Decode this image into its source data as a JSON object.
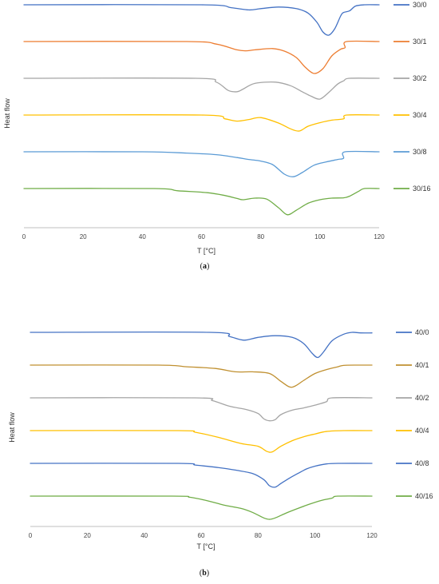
{
  "chart_data": [
    {
      "type": "line",
      "panel_label": "a",
      "xlabel": "T [°C]",
      "ylabel": "Heat flow",
      "xlim": [
        0,
        120
      ],
      "xticks": [
        0,
        20,
        40,
        60,
        80,
        100,
        120
      ],
      "grid": false,
      "legend_position": "right",
      "series": [
        {
          "name": "30/0",
          "color": "#4472C4",
          "baseline_level": 5,
          "x": [
            0,
            60,
            70,
            76,
            80,
            86,
            92,
            96,
            99,
            101,
            103,
            105,
            107,
            108,
            110,
            112,
            115,
            120
          ],
          "y": [
            0,
            0,
            0.9,
            1.6,
            1.2,
            0.7,
            1.2,
            2.6,
            5.5,
            8.5,
            9.5,
            7.5,
            3.5,
            2.4,
            1.9,
            0.4,
            0,
            0
          ]
        },
        {
          "name": "30/1",
          "color": "#ED7D31",
          "baseline_level": 4,
          "x": [
            0,
            55,
            65,
            72,
            75,
            78,
            84,
            88,
            92,
            95,
            98,
            101,
            104,
            107,
            108.5,
            109,
            120
          ],
          "y": [
            0,
            0,
            0.8,
            2.6,
            2.9,
            2.6,
            2.2,
            3.0,
            5.0,
            8.0,
            10.0,
            8.5,
            4.5,
            2.4,
            1.9,
            0,
            0
          ]
        },
        {
          "name": "30/2",
          "color": "#A5A5A5",
          "baseline_level": 3,
          "x": [
            0,
            58,
            65,
            69,
            72,
            74,
            78,
            85,
            90,
            94,
            97,
            100,
            103,
            106,
            108,
            110,
            120
          ],
          "y": [
            0,
            0,
            1.2,
            3.8,
            4.2,
            3.4,
            1.6,
            1.2,
            2.3,
            4.2,
            5.6,
            6.5,
            4.4,
            1.8,
            0.8,
            0,
            0
          ]
        },
        {
          "name": "30/4",
          "color": "#FFC000",
          "baseline_level": 2,
          "x": [
            0,
            60,
            68,
            72,
            76,
            80,
            86,
            90,
            93,
            96,
            100,
            104,
            108,
            109,
            120
          ],
          "y": [
            0,
            0,
            1.2,
            1.9,
            1.4,
            0.8,
            2.5,
            4.3,
            5.0,
            3.5,
            2.4,
            1.6,
            1.2,
            0,
            0
          ]
        },
        {
          "name": "30/8",
          "color": "#5B9BD5",
          "baseline_level": 1,
          "x": [
            0,
            40,
            55,
            65,
            72,
            76,
            80,
            84,
            88,
            91,
            94,
            98,
            102,
            106,
            108,
            108.5,
            120
          ],
          "y": [
            0,
            0,
            0.4,
            0.9,
            1.8,
            2.4,
            2.9,
            4.0,
            7.0,
            7.8,
            6.5,
            4.2,
            3.2,
            2.4,
            2.0,
            0,
            0
          ]
        },
        {
          "name": "30/16",
          "color": "#70AD47",
          "baseline_level": 0,
          "x": [
            0,
            44,
            52,
            62,
            68,
            72,
            74,
            78,
            82,
            86,
            89,
            92,
            96,
            100,
            104,
            108,
            110,
            113,
            115,
            120
          ],
          "y": [
            0,
            0,
            0.7,
            1.3,
            2.2,
            3.1,
            3.5,
            3.0,
            3.3,
            6.0,
            8.2,
            6.8,
            4.6,
            3.5,
            3.0,
            2.9,
            2.4,
            0.9,
            0,
            0
          ]
        }
      ]
    },
    {
      "type": "line",
      "panel_label": "b",
      "xlabel": "T [°C]",
      "ylabel": "Heat flow",
      "xlim": [
        0,
        120
      ],
      "xticks": [
        0,
        20,
        40,
        60,
        80,
        100,
        120
      ],
      "grid": false,
      "legend_position": "right",
      "series": [
        {
          "name": "40/0",
          "color": "#4472C4",
          "baseline_level": 5,
          "x": [
            0,
            63,
            70,
            75,
            80,
            86,
            92,
            96,
            99,
            101,
            103,
            106,
            110,
            113,
            116,
            120
          ],
          "y": [
            0,
            0,
            1.5,
            2.8,
            1.8,
            1.2,
            1.8,
            4.0,
            7.5,
            9.0,
            7.0,
            3.0,
            0.7,
            0,
            0.2,
            0.2
          ]
        },
        {
          "name": "40/1",
          "color": "#C09030",
          "baseline_level": 4,
          "x": [
            0,
            45,
            55,
            65,
            72,
            78,
            84,
            88,
            91,
            93,
            96,
            100,
            104,
            108,
            110,
            115,
            120
          ],
          "y": [
            0,
            0,
            0.6,
            1.2,
            2.4,
            2.4,
            3.0,
            5.8,
            7.8,
            7.5,
            5.5,
            3.0,
            1.6,
            0.6,
            0.1,
            0,
            0
          ]
        },
        {
          "name": "40/2",
          "color": "#A5A5A5",
          "baseline_level": 3,
          "x": [
            0,
            58,
            64,
            70,
            76,
            80,
            82,
            84,
            86,
            88,
            92,
            96,
            100,
            104,
            106,
            120
          ],
          "y": [
            0,
            0,
            1.0,
            3.0,
            4.2,
            5.6,
            7.5,
            8.2,
            7.8,
            6.0,
            4.4,
            3.6,
            2.6,
            1.4,
            0,
            0
          ]
        },
        {
          "name": "40/4",
          "color": "#FFC000",
          "baseline_level": 2,
          "x": [
            0,
            52,
            58,
            66,
            74,
            80,
            83,
            85,
            88,
            92,
            96,
            100,
            104,
            110,
            120
          ],
          "y": [
            0,
            0,
            0.6,
            2.4,
            4.6,
            5.6,
            7.4,
            7.6,
            5.6,
            3.6,
            2.2,
            1.2,
            0.3,
            0,
            0
          ]
        },
        {
          "name": "40/8",
          "color": "#4472C4",
          "baseline_level": 1,
          "x": [
            0,
            52,
            58,
            66,
            72,
            78,
            82,
            84,
            86,
            88,
            91,
            94,
            97,
            100,
            104,
            108,
            120
          ],
          "y": [
            0,
            0,
            0.6,
            1.5,
            2.4,
            3.6,
            5.8,
            8.0,
            8.5,
            7.2,
            5.3,
            3.6,
            2.0,
            1.0,
            0.2,
            0,
            0
          ]
        },
        {
          "name": "40/16",
          "color": "#70AD47",
          "baseline_level": 0,
          "x": [
            0,
            50,
            56,
            62,
            68,
            74,
            78,
            82,
            84,
            86,
            90,
            94,
            98,
            102,
            106,
            108,
            120
          ],
          "y": [
            0,
            0,
            0.4,
            1.6,
            3.2,
            4.4,
            5.8,
            7.8,
            8.3,
            7.8,
            6.0,
            4.4,
            2.9,
            1.6,
            0.7,
            0,
            0
          ]
        }
      ]
    }
  ]
}
